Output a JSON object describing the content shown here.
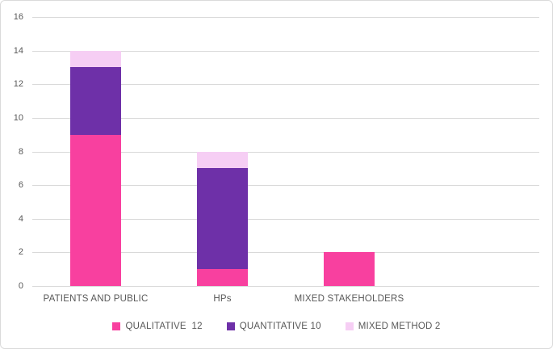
{
  "figure": {
    "background": "#ffffff",
    "border_color": "#dadada"
  },
  "chart_data": {
    "type": "bar",
    "stacked": true,
    "title": "",
    "xlabel": "",
    "ylabel": "",
    "categories": [
      "PATIENTS AND PUBLIC",
      "HPs",
      "MIXED STAKEHOLDERS"
    ],
    "series": [
      {
        "name": "QUALITATIVE",
        "legend_label": "QUALITATIVE  12",
        "color": "#f8409f",
        "values": [
          9,
          1,
          2
        ]
      },
      {
        "name": "QUANTITATIVE",
        "legend_label": "QUANTITATIVE 10",
        "color": "#6e30a8",
        "values": [
          4,
          6,
          0
        ]
      },
      {
        "name": "MIXED METHOD",
        "legend_label": "MIXED METHOD 2",
        "color": "#f6cef4",
        "values": [
          1,
          1,
          0
        ]
      }
    ],
    "category_totals": [
      14,
      8,
      2
    ],
    "ylim": [
      0,
      16
    ],
    "yticks": [
      0,
      2,
      4,
      6,
      8,
      10,
      12,
      14,
      16
    ],
    "grid": "horizontal",
    "gridline_color": "#d9d9d9",
    "tick_label_color": "#595959",
    "legend_position": "bottom",
    "num_category_slots": 4,
    "bar_width_fraction": 0.4
  }
}
